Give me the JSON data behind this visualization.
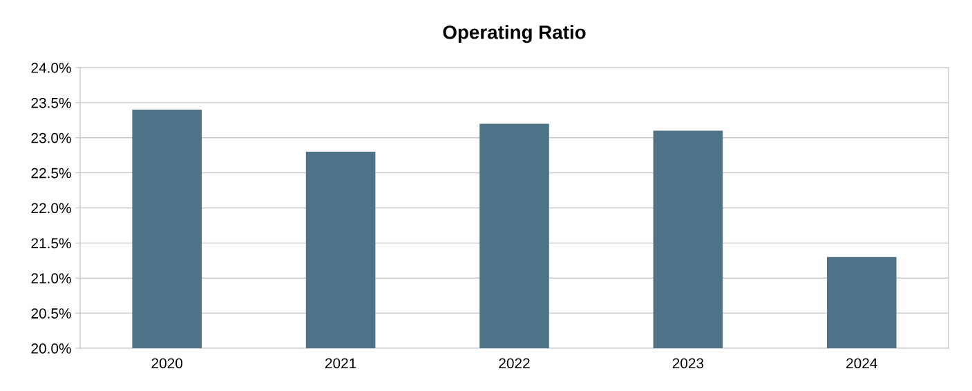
{
  "chart_data": {
    "type": "bar",
    "title": "Operating Ratio",
    "categories": [
      "2020",
      "2021",
      "2022",
      "2023",
      "2024"
    ],
    "values": [
      23.4,
      22.8,
      23.2,
      23.1,
      21.3
    ],
    "color": "#4e7389",
    "ylim": [
      20,
      24
    ],
    "yticks": [
      {
        "value": 20,
        "label": "20.0%"
      },
      {
        "value": 20.5,
        "label": "20.5%"
      },
      {
        "value": 21,
        "label": "21.0%"
      },
      {
        "value": 21.5,
        "label": "21.5%"
      },
      {
        "value": 22,
        "label": "22.0%"
      },
      {
        "value": 22.5,
        "label": "22.5%"
      },
      {
        "value": 23,
        "label": "23.0%"
      },
      {
        "value": 23.5,
        "label": "23.5%"
      },
      {
        "value": 24,
        "label": "24.0%"
      }
    ],
    "grid": "y",
    "legend": false
  }
}
